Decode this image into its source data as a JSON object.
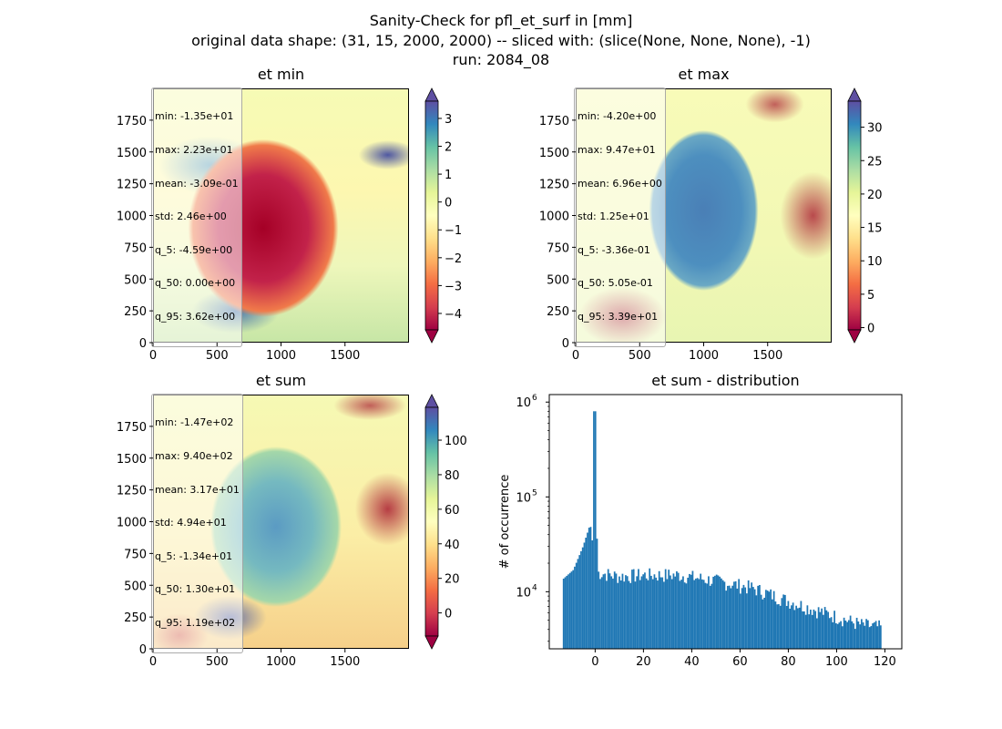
{
  "figure": {
    "title_line1": "Sanity-Check for pfl_et_surf in [mm]",
    "title_line2": "original data shape: (31, 15, 2000, 2000) -- sliced with: (slice(None, None, None), -1)",
    "title_line3": "run: 2084_08"
  },
  "chart_data": [
    {
      "type": "heatmap",
      "title": "et min",
      "xticks": [
        "0",
        "500",
        "1000",
        "1500"
      ],
      "yticks": [
        "0",
        "250",
        "500",
        "750",
        "1000",
        "1250",
        "1500",
        "1750"
      ],
      "xlim": [
        0,
        2000
      ],
      "ylim": [
        0,
        2000
      ],
      "colorbar": {
        "ticks": [
          "3",
          "2",
          "1",
          "0",
          "−1",
          "−2",
          "−3",
          "−4"
        ],
        "range": [
          -4.59,
          3.62
        ],
        "extend": "both",
        "colormap": "Spectral"
      },
      "stats": [
        "min: -1.35e+01",
        "max: 2.23e+01",
        "mean: -3.09e-01",
        "std: 2.46e+00",
        "q_5: -4.59e+00",
        "q_50: 0.00e+00",
        "q_95: 3.62e+00"
      ]
    },
    {
      "type": "heatmap",
      "title": "et max",
      "xticks": [
        "0",
        "500",
        "1000",
        "1500"
      ],
      "yticks": [
        "0",
        "250",
        "500",
        "750",
        "1000",
        "1250",
        "1500",
        "1750"
      ],
      "xlim": [
        0,
        2000
      ],
      "ylim": [
        0,
        2000
      ],
      "colorbar": {
        "ticks": [
          "30",
          "25",
          "20",
          "15",
          "10",
          "5",
          "0"
        ],
        "range": [
          -0.336,
          33.9
        ],
        "extend": "both",
        "colormap": "Spectral"
      },
      "stats": [
        "min: -4.20e+00",
        "max: 9.47e+01",
        "mean: 6.96e+00",
        "std: 1.25e+01",
        "q_5: -3.36e-01",
        "q_50: 5.05e-01",
        "q_95: 3.39e+01"
      ]
    },
    {
      "type": "heatmap",
      "title": "et sum",
      "xticks": [
        "0",
        "500",
        "1000",
        "1500"
      ],
      "yticks": [
        "0",
        "250",
        "500",
        "750",
        "1000",
        "1250",
        "1500",
        "1750"
      ],
      "xlim": [
        0,
        2000
      ],
      "ylim": [
        0,
        2000
      ],
      "colorbar": {
        "ticks": [
          "100",
          "80",
          "60",
          "40",
          "20",
          "0"
        ],
        "range": [
          -13.4,
          119
        ],
        "extend": "both",
        "colormap": "Spectral"
      },
      "stats": [
        "min: -1.47e+02",
        "max: 9.40e+02",
        "mean: 3.17e+01",
        "std: 4.94e+01",
        "q_5: -1.34e+01",
        "q_50: 1.30e+01",
        "q_95: 1.19e+02"
      ]
    },
    {
      "type": "bar",
      "title": "et sum - distribution",
      "ylabel": "# of occurrence",
      "yscale": "log",
      "ylim": [
        2500,
        1200000
      ],
      "xlim": [
        -19,
        127
      ],
      "xticks": [
        "0",
        "20",
        "40",
        "60",
        "80",
        "100",
        "120"
      ],
      "yticks": [
        "10^4",
        "10^5",
        "10^6"
      ],
      "color": "#1f77b4",
      "bins": {
        "start": -13.4,
        "end": 118.6,
        "count": 200
      },
      "peaks": [
        {
          "x": -1.5,
          "y": 50000
        },
        {
          "x": 0,
          "y": 800000
        },
        {
          "x": 16,
          "y": 20000
        },
        {
          "x": 34,
          "y": 18000
        },
        {
          "x": 60,
          "y": 14000
        },
        {
          "x": 80,
          "y": 9000
        },
        {
          "x": 100,
          "y": 5500
        },
        {
          "x": 118,
          "y": 4500
        }
      ],
      "series_outline": [
        {
          "x": -13.4,
          "y": 13500
        },
        {
          "x": -9,
          "y": 17000
        },
        {
          "x": -5,
          "y": 30000
        },
        {
          "x": -2,
          "y": 52000
        },
        {
          "x": -0.6,
          "y": 26000
        },
        {
          "x": 0,
          "y": 800000
        },
        {
          "x": 1,
          "y": 16000
        },
        {
          "x": 10,
          "y": 14500
        },
        {
          "x": 20,
          "y": 15000
        },
        {
          "x": 35,
          "y": 15000
        },
        {
          "x": 50,
          "y": 13000
        },
        {
          "x": 65,
          "y": 11000
        },
        {
          "x": 80,
          "y": 8000
        },
        {
          "x": 95,
          "y": 6000
        },
        {
          "x": 110,
          "y": 4500
        },
        {
          "x": 118.6,
          "y": 4200
        }
      ]
    }
  ]
}
